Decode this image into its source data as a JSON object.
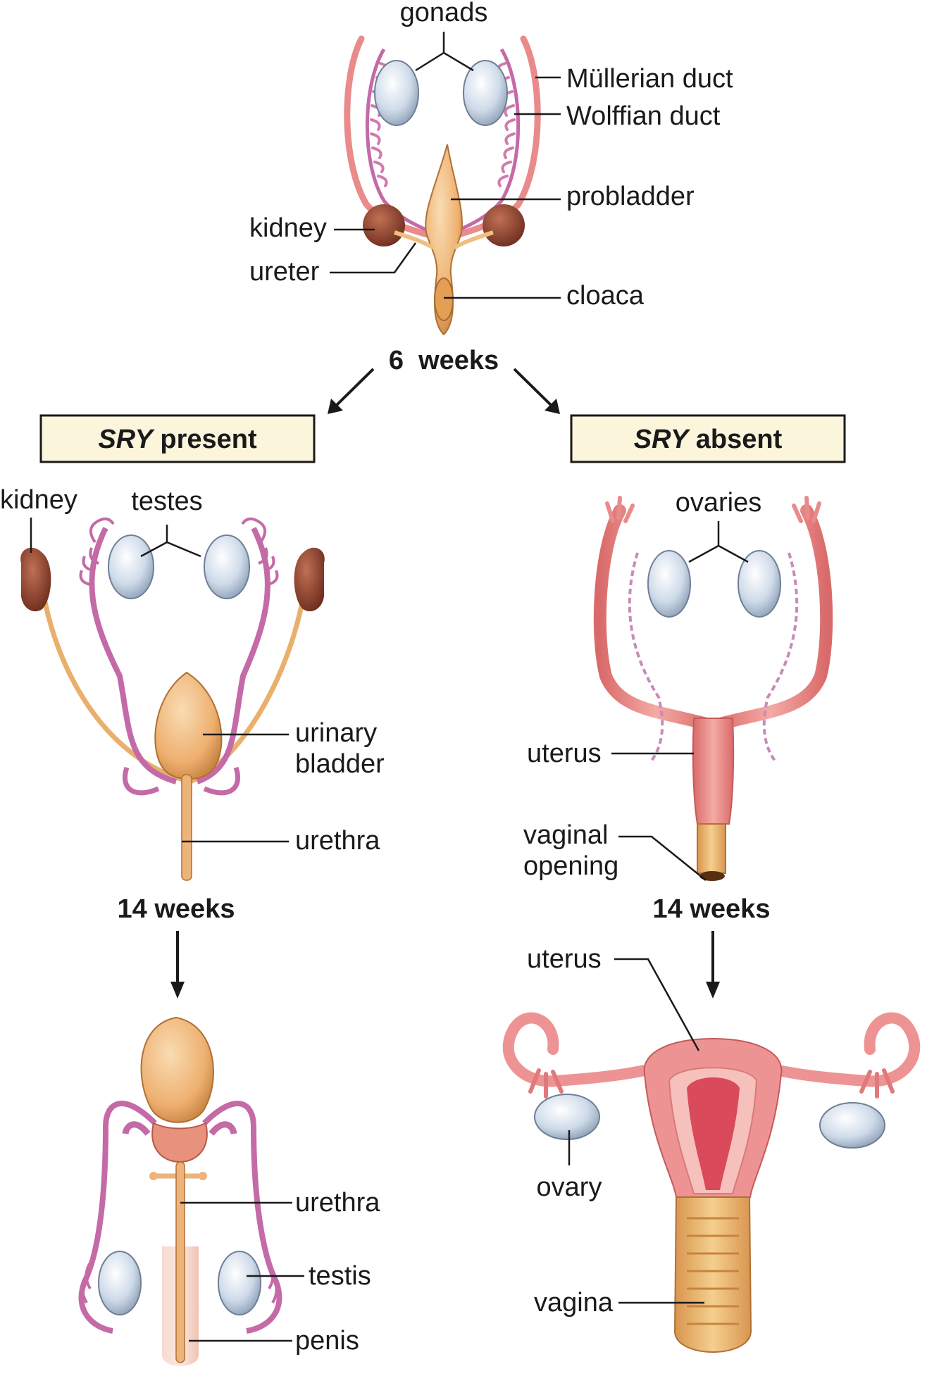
{
  "top": {
    "gonads": "gonads",
    "mullerian": "Müllerian duct",
    "wolffian": "Wolffian duct",
    "probladder": "probladder",
    "kidney": "kidney",
    "ureter": "ureter",
    "cloaca": "cloaca",
    "stage": "6  weeks"
  },
  "male": {
    "box_gene": "SRY",
    "box_word": " present",
    "kidney": "kidney",
    "testes": "testes",
    "urinary": "urinary",
    "bladder": "bladder",
    "urethra": "urethra",
    "stage": "14 weeks",
    "urethra2": "urethra",
    "testis": "testis",
    "penis": "penis"
  },
  "female": {
    "box_gene": "SRY",
    "box_word": " absent",
    "ovaries": "ovaries",
    "uterus": "uterus",
    "vaginal": "vaginal",
    "opening": "opening",
    "stage": "14 weeks",
    "uterus2": "uterus",
    "ovary": "ovary",
    "vagina": "vagina"
  },
  "colors": {
    "duct_pink": "#e98b8b",
    "wolffian_purple": "#c46aa7",
    "gonad_blue": "#c9d6e6",
    "bladder_tan": "#edb37a",
    "kidney_brown": "#9a4a34",
    "uterus_pink": "#ee9393",
    "box_fill": "#fbf5dc"
  }
}
